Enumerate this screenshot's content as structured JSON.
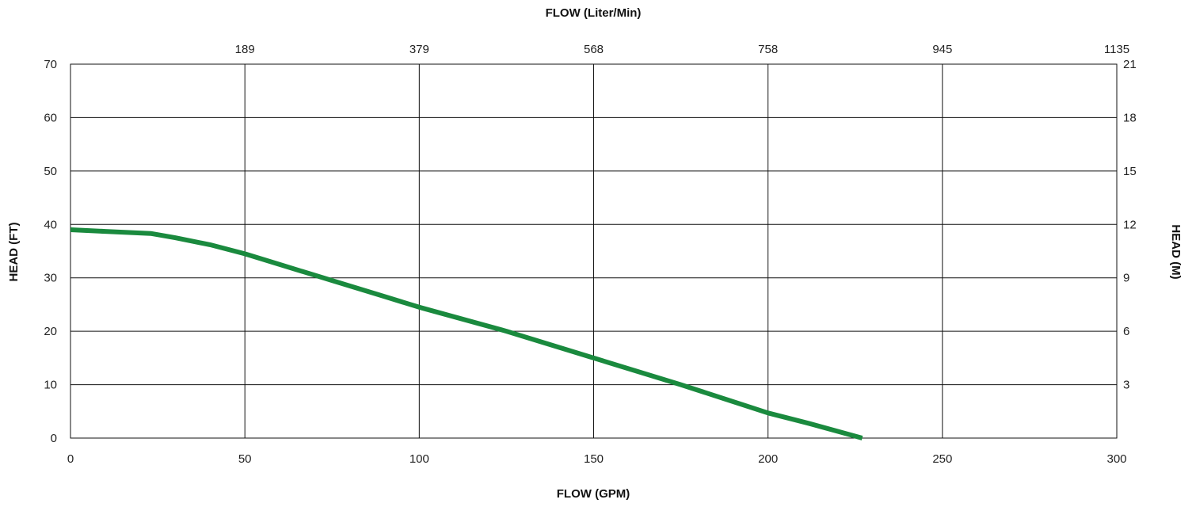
{
  "chart_data": {
    "type": "line",
    "title": "",
    "xlabel": "FLOW (GPM)",
    "xlabel_top": "FLOW (Liter/Min)",
    "ylabel": "HEAD (FT)",
    "ylabel_right": "HEAD (M)",
    "xlim": [
      0,
      300
    ],
    "ylim": [
      0,
      70
    ],
    "grid": true,
    "x_ticks": [
      0,
      50,
      100,
      150,
      200,
      250,
      300
    ],
    "y_ticks": [
      0,
      10,
      20,
      30,
      40,
      50,
      60,
      70
    ],
    "x_top_ticks": [
      {
        "at": 50,
        "label": "189"
      },
      {
        "at": 100,
        "label": "379"
      },
      {
        "at": 150,
        "label": "568"
      },
      {
        "at": 200,
        "label": "758"
      },
      {
        "at": 250,
        "label": "945"
      },
      {
        "at": 300,
        "label": "1135"
      }
    ],
    "y_right_ticks": [
      {
        "at": 10,
        "label": "3"
      },
      {
        "at": 20,
        "label": "6"
      },
      {
        "at": 30,
        "label": "9"
      },
      {
        "at": 40,
        "label": "12"
      },
      {
        "at": 50,
        "label": "15"
      },
      {
        "at": 60,
        "label": "18"
      },
      {
        "at": 70,
        "label": "21"
      }
    ],
    "series": [
      {
        "color": "#1a8a3e",
        "x": [
          0,
          10,
          23,
          30,
          40,
          50,
          60,
          75,
          90,
          100,
          125,
          150,
          175,
          200,
          212,
          227
        ],
        "y": [
          39,
          38.7,
          38.3,
          37.5,
          36.2,
          34.5,
          32.5,
          29.5,
          26.5,
          24.5,
          20,
          15,
          10,
          4.7,
          2.7,
          0
        ]
      }
    ]
  }
}
